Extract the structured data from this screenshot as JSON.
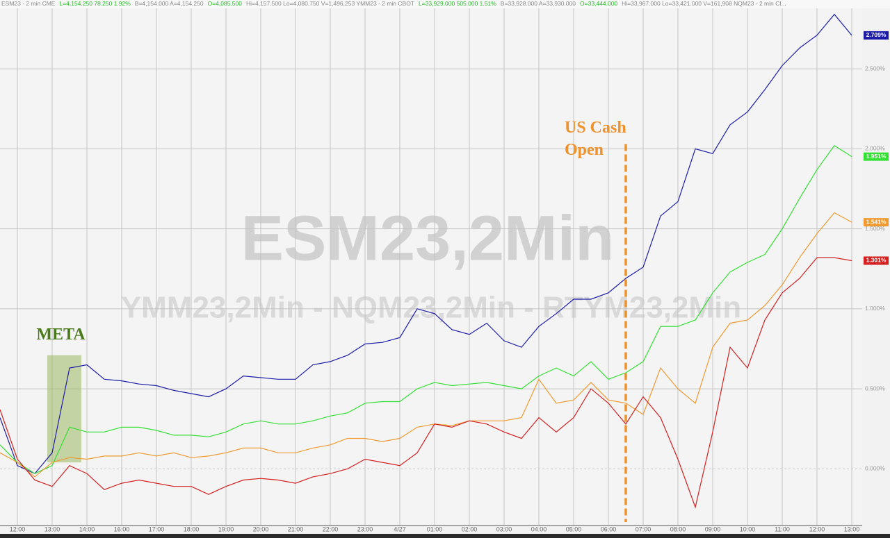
{
  "chart_data": {
    "type": "line",
    "header": [
      {
        "text": "ESM23 - 2 min  CME",
        "color": "#888888"
      },
      {
        "text": "L=4,154.250  78.250  1.92%",
        "color": "#22bb22"
      },
      {
        "text": "B=4,154.000  A=4,154.250",
        "color": "#888888"
      },
      {
        "text": "O=4,085.500",
        "color": "#22bb22"
      },
      {
        "text": "Hi=4,157.500  Lo=4,080.750  V=1,496,253  YMM23 - 2 min  CBOT",
        "color": "#888888"
      },
      {
        "text": "L=33,929.000  505.000  1.51%",
        "color": "#22bb22"
      },
      {
        "text": "B=33,928.000  A=33,930.000",
        "color": "#888888"
      },
      {
        "text": "O=33,444.000",
        "color": "#22bb22"
      },
      {
        "text": "Hi=33,967.000  Lo=33,421.000  V=161,908  NQM23 - 2 min  CI...",
        "color": "#888888"
      }
    ],
    "watermarks": [
      "ESM23,2Min",
      "YMM23,2Min - NQM23,2Min - RTYM23,2Min"
    ],
    "annotations": [
      {
        "text": "META",
        "x": [
          0.86,
          1.84
        ],
        "y": [
          0.04,
          0.71
        ],
        "color": "#4a7a1a"
      },
      {
        "text": [
          "US Cash",
          "Open"
        ],
        "x": 17.5,
        "y": 2.03,
        "color": "#f0922b"
      }
    ],
    "x": [
      -0.5,
      0,
      0.5,
      1,
      1.5,
      2,
      2.5,
      3,
      3.5,
      4,
      4.5,
      5,
      5.5,
      6,
      6.5,
      7,
      7.5,
      8,
      8.5,
      9,
      9.5,
      10,
      10.5,
      11,
      11.5,
      12,
      12.5,
      13,
      13.5,
      14,
      14.5,
      15,
      15.5,
      16,
      16.5,
      17,
      17.5,
      18,
      18.5,
      19,
      19.5,
      20,
      20.5,
      21,
      21.5,
      22,
      22.5,
      23,
      23.5,
      24
    ],
    "xlim": [
      -0.5,
      24.3
    ],
    "xticks": [
      {
        "value": 0,
        "label": "12:00"
      },
      {
        "value": 1,
        "label": "13:00"
      },
      {
        "value": 2,
        "label": "14:00"
      },
      {
        "value": 3,
        "label": "16:00"
      },
      {
        "value": 4,
        "label": "17:00"
      },
      {
        "value": 5,
        "label": "18:00"
      },
      {
        "value": 6,
        "label": "19:00"
      },
      {
        "value": 7,
        "label": "20:00"
      },
      {
        "value": 8,
        "label": "21:00"
      },
      {
        "value": 9,
        "label": "22:00"
      },
      {
        "value": 10,
        "label": "23:00"
      },
      {
        "value": 11,
        "label": "4/27"
      },
      {
        "value": 12,
        "label": "01:00"
      },
      {
        "value": 13,
        "label": "02:00"
      },
      {
        "value": 14,
        "label": "03:00"
      },
      {
        "value": 15,
        "label": "04:00"
      },
      {
        "value": 16,
        "label": "05:00"
      },
      {
        "value": 17,
        "label": "06:00"
      },
      {
        "value": 18,
        "label": "07:00"
      },
      {
        "value": 19,
        "label": "08:00"
      },
      {
        "value": 20,
        "label": "09:00"
      },
      {
        "value": 21,
        "label": "10:00"
      },
      {
        "value": 22,
        "label": "11:00"
      },
      {
        "value": 23,
        "label": "12:00"
      },
      {
        "value": 24,
        "label": "13:00"
      }
    ],
    "ylim": [
      -0.35,
      2.93
    ],
    "yticks": [
      {
        "value": 0,
        "label": "0.000%"
      },
      {
        "value": 0.5,
        "label": "0.500%"
      },
      {
        "value": 1,
        "label": "1.000%"
      },
      {
        "value": 1.5,
        "label": "1.500%"
      },
      {
        "value": 2,
        "label": "2.000%"
      },
      {
        "value": 2.5,
        "label": "2.500%"
      }
    ],
    "grid": true,
    "series": [
      {
        "color": "#1c1ca8",
        "last_label": "2.709%",
        "values": [
          0.32,
          0.02,
          -0.03,
          0.1,
          0.63,
          0.65,
          0.56,
          0.55,
          0.53,
          0.52,
          0.49,
          0.47,
          0.45,
          0.5,
          0.58,
          0.57,
          0.56,
          0.56,
          0.65,
          0.67,
          0.71,
          0.78,
          0.79,
          0.82,
          1.0,
          0.97,
          0.87,
          0.84,
          0.91,
          0.8,
          0.76,
          0.89,
          0.97,
          1.06,
          1.06,
          1.1,
          1.19,
          1.26,
          1.58,
          1.67,
          2.0,
          1.97,
          2.15,
          2.23,
          2.37,
          2.52,
          2.63,
          2.71,
          2.84,
          2.709
        ]
      },
      {
        "color": "#33e033",
        "last_label": "1.951%",
        "values": [
          0.15,
          0.04,
          -0.03,
          0.02,
          0.26,
          0.23,
          0.23,
          0.26,
          0.26,
          0.24,
          0.21,
          0.21,
          0.2,
          0.23,
          0.28,
          0.3,
          0.28,
          0.28,
          0.3,
          0.33,
          0.35,
          0.41,
          0.42,
          0.42,
          0.5,
          0.54,
          0.52,
          0.53,
          0.54,
          0.52,
          0.5,
          0.58,
          0.63,
          0.58,
          0.67,
          0.56,
          0.6,
          0.67,
          0.89,
          0.89,
          0.93,
          1.1,
          1.23,
          1.29,
          1.34,
          1.5,
          1.69,
          1.87,
          2.02,
          1.951
        ]
      },
      {
        "color": "#f09a30",
        "last_label": "1.541%",
        "values": [
          0.1,
          0.04,
          -0.05,
          0.04,
          0.07,
          0.06,
          0.08,
          0.08,
          0.1,
          0.08,
          0.1,
          0.07,
          0.08,
          0.1,
          0.13,
          0.13,
          0.1,
          0.1,
          0.13,
          0.15,
          0.19,
          0.19,
          0.17,
          0.19,
          0.26,
          0.28,
          0.27,
          0.3,
          0.3,
          0.3,
          0.32,
          0.56,
          0.41,
          0.43,
          0.54,
          0.43,
          0.41,
          0.34,
          0.63,
          0.5,
          0.41,
          0.76,
          0.91,
          0.93,
          1.02,
          1.15,
          1.32,
          1.47,
          1.6,
          1.541
        ]
      },
      {
        "color": "#d42020",
        "last_label": "1.301%",
        "values": [
          0.37,
          0.06,
          -0.07,
          -0.11,
          0.02,
          -0.03,
          -0.13,
          -0.09,
          -0.07,
          -0.09,
          -0.11,
          -0.11,
          -0.16,
          -0.11,
          -0.07,
          -0.06,
          -0.07,
          -0.09,
          -0.05,
          -0.03,
          0.0,
          0.06,
          0.04,
          0.02,
          0.1,
          0.28,
          0.26,
          0.3,
          0.28,
          0.23,
          0.19,
          0.32,
          0.23,
          0.32,
          0.5,
          0.41,
          0.28,
          0.45,
          0.32,
          0.06,
          -0.24,
          0.23,
          0.76,
          0.63,
          0.93,
          1.1,
          1.19,
          1.32,
          1.32,
          1.301
        ]
      }
    ]
  }
}
